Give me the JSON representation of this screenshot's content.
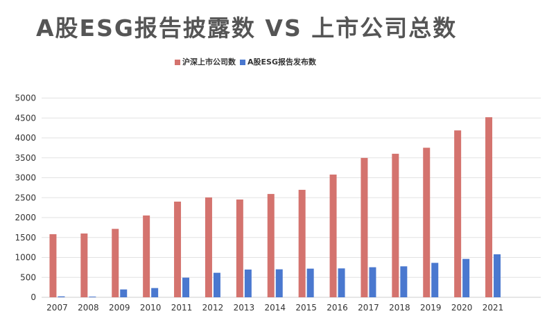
{
  "chart_data": {
    "type": "bar",
    "title": "A股ESG报告披露数 VS 上市公司总数",
    "xlabel": "",
    "ylabel": "",
    "ylim": [
      0,
      5000
    ],
    "yticks": [
      "0",
      "500",
      "1000",
      "1500",
      "2000",
      "2500",
      "3000",
      "3500",
      "4000",
      "4500",
      "5000"
    ],
    "grid": true,
    "legend_position": "top",
    "categories": [
      "2007",
      "2008",
      "2009",
      "2010",
      "2011",
      "2012",
      "2013",
      "2014",
      "2015",
      "2016",
      "2017",
      "2018",
      "2019",
      "2020",
      "2021"
    ],
    "series": [
      {
        "name": "沪深上市公司数",
        "color": "#d4736e",
        "values": [
          1584,
          1601,
          1717,
          2053,
          2401,
          2506,
          2454,
          2593,
          2697,
          3080,
          3498,
          3602,
          3753,
          4188,
          4519
        ]
      },
      {
        "name": "A股ESG报告发布数",
        "color": "#4a78cf",
        "values": [
          23,
          17,
          197,
          232,
          493,
          615,
          696,
          702,
          719,
          725,
          754,
          777,
          864,
          963,
          1079
        ]
      }
    ]
  }
}
